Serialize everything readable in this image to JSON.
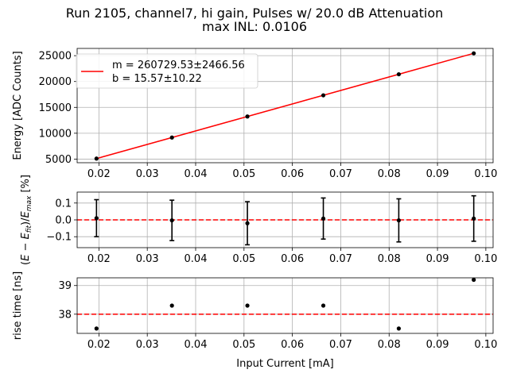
{
  "figure": {
    "title_line1": "Run 2105, channel7, hi gain, Pulses w/ 20.0 dB Attenuation",
    "title_line2": "max INL: 0.0106"
  },
  "chart_data": [
    {
      "type": "line",
      "panel": "energy",
      "xlabel": "",
      "ylabel": "Energy [ADC Counts]",
      "xlim": [
        0.0155,
        0.1015
      ],
      "ylim": [
        4300,
        26400
      ],
      "xticks": [
        "0.02",
        "0.03",
        "0.04",
        "0.05",
        "0.06",
        "0.07",
        "0.08",
        "0.09",
        "0.10"
      ],
      "xtick_values": [
        0.02,
        0.03,
        0.04,
        0.05,
        0.06,
        0.07,
        0.08,
        0.09,
        0.1
      ],
      "yticks": [
        "5000",
        "10000",
        "15000",
        "20000",
        "25000"
      ],
      "ytick_values": [
        5000,
        10000,
        15000,
        20000,
        25000
      ],
      "grid": true,
      "legend_position": "upper-left",
      "points": {
        "x": [
          0.0195,
          0.0351,
          0.0507,
          0.0664,
          0.082,
          0.0975
        ],
        "y": [
          5100,
          9170,
          13240,
          17330,
          21400,
          25450
        ],
        "color": "#000000"
      },
      "fit": {
        "x": [
          0.0195,
          0.0975
        ],
        "y": [
          5100,
          25450
        ],
        "color": "#ff0000",
        "legend_line1": "m = 260729.53±2466.56",
        "legend_line2": "b = 15.57±10.22"
      }
    },
    {
      "type": "scatter",
      "panel": "residual",
      "xlabel": "",
      "ylabel": "(E − E_fit)/E_max [%]",
      "ylabel_parts": {
        "a": "(",
        "b": "E",
        "c": " − ",
        "d": "E",
        "e": "fit",
        "f": ")/",
        "g": "E",
        "h": "max",
        "i": " [%]"
      },
      "xlim": [
        0.0155,
        0.1015
      ],
      "ylim": [
        -0.165,
        0.165
      ],
      "xticks": [
        "0.02",
        "0.03",
        "0.04",
        "0.05",
        "0.06",
        "0.07",
        "0.08",
        "0.09",
        "0.10"
      ],
      "xtick_values": [
        0.02,
        0.03,
        0.04,
        0.05,
        0.06,
        0.07,
        0.08,
        0.09,
        0.1
      ],
      "yticks": [
        "−0.1",
        "0.0",
        "0.1"
      ],
      "ytick_values": [
        -0.1,
        0.0,
        0.1
      ],
      "grid": true,
      "reference_line": {
        "y": 0.0,
        "color": "#ff0000",
        "style": "dashed"
      },
      "points": {
        "x": [
          0.0195,
          0.0351,
          0.0507,
          0.0664,
          0.082,
          0.0975
        ],
        "y": [
          0.01,
          -0.003,
          -0.02,
          0.008,
          -0.003,
          0.008
        ],
        "yerr": [
          0.11,
          0.12,
          0.128,
          0.122,
          0.128,
          0.135
        ],
        "color": "#000000"
      }
    },
    {
      "type": "scatter",
      "panel": "risetime",
      "xlabel": "Input Current [mA]",
      "ylabel": "rise time [ns]",
      "xlim": [
        0.0155,
        0.1015
      ],
      "ylim": [
        37.33,
        39.27
      ],
      "xticks": [
        "0.02",
        "0.03",
        "0.04",
        "0.05",
        "0.06",
        "0.07",
        "0.08",
        "0.09",
        "0.10"
      ],
      "xtick_values": [
        0.02,
        0.03,
        0.04,
        0.05,
        0.06,
        0.07,
        0.08,
        0.09,
        0.1
      ],
      "yticks": [
        "38",
        "39"
      ],
      "ytick_values": [
        38,
        39
      ],
      "grid": true,
      "reference_line": {
        "y": 38.0,
        "color": "#ff0000",
        "style": "dashed"
      },
      "points": {
        "x": [
          0.0195,
          0.0351,
          0.0507,
          0.0664,
          0.082,
          0.0975
        ],
        "y": [
          37.5,
          38.3,
          38.3,
          38.3,
          37.5,
          39.2
        ],
        "color": "#000000"
      }
    }
  ]
}
